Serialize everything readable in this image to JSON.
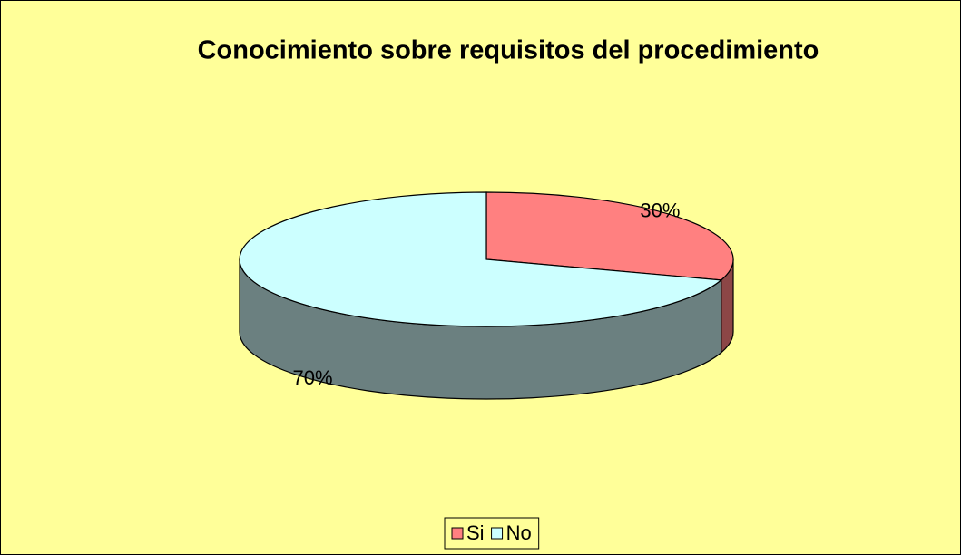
{
  "chart_data": {
    "type": "pie",
    "title": "Conocimiento sobre requisitos del procedimiento",
    "categories": [
      "Si",
      "No"
    ],
    "values": [
      30,
      70
    ],
    "value_labels": [
      "30%",
      "70%"
    ],
    "colors": [
      "#ff8080",
      "#ccffff"
    ],
    "legend": "bottom"
  }
}
